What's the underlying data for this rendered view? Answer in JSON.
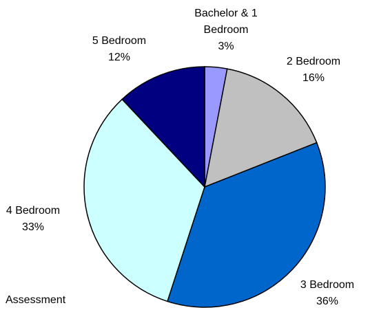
{
  "chart_data": {
    "type": "pie",
    "caption": "Assessment",
    "categories": [
      "Bachelor & 1 Bedroom",
      "2 Bedroom",
      "3 Bedroom",
      "4 Bedroom",
      "5 Bedroom"
    ],
    "values": [
      3,
      16,
      36,
      33,
      12
    ],
    "value_labels": [
      "3%",
      "16%",
      "36%",
      "33%",
      "12%"
    ],
    "colors": [
      "#9999ff",
      "#c0c0c0",
      "#0066cc",
      "#ccffff",
      "#000080"
    ]
  }
}
